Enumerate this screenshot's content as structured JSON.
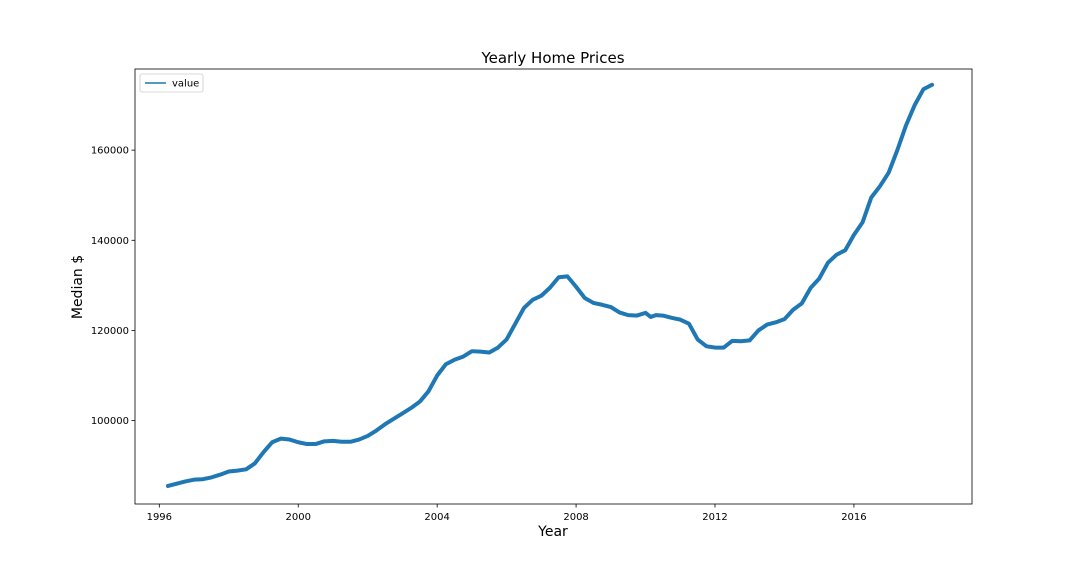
{
  "chart_data": {
    "type": "line",
    "title": "Yearly Home Prices",
    "xlabel": "Year",
    "ylabel": "Median $",
    "xlim": [
      1995.3,
      2019.4
    ],
    "ylim": [
      81500,
      178000
    ],
    "xticks": [
      1996,
      2000,
      2004,
      2008,
      2012,
      2016
    ],
    "yticks": [
      100000,
      120000,
      140000,
      160000
    ],
    "grid": false,
    "legend": {
      "position": "top-left",
      "entries": [
        "value"
      ]
    },
    "series": [
      {
        "name": "value",
        "color": "#1f77b4",
        "x": [
          1996.25,
          1996.5,
          1996.75,
          1997.0,
          1997.25,
          1997.5,
          1997.75,
          1998.0,
          1998.25,
          1998.5,
          1998.75,
          1999.0,
          1999.25,
          1999.5,
          1999.75,
          2000.0,
          2000.25,
          2000.5,
          2000.75,
          2001.0,
          2001.25,
          2001.5,
          2001.75,
          2002.0,
          2002.25,
          2002.5,
          2002.75,
          2003.0,
          2003.25,
          2003.5,
          2003.75,
          2004.0,
          2004.25,
          2004.5,
          2004.75,
          2005.0,
          2005.25,
          2005.5,
          2005.75,
          2006.0,
          2006.25,
          2006.5,
          2006.75,
          2007.0,
          2007.25,
          2007.5,
          2007.75,
          2008.0,
          2008.25,
          2008.5,
          2008.75,
          2009.0,
          2009.25,
          2009.5,
          2009.75,
          2010.0,
          2010.15,
          2010.3,
          2010.5,
          2010.75,
          2011.0,
          2011.25,
          2011.5,
          2011.75,
          2012.0,
          2012.25,
          2012.5,
          2012.75,
          2013.0,
          2013.25,
          2013.5,
          2013.75,
          2014.0,
          2014.25,
          2014.5,
          2014.75,
          2015.0,
          2015.25,
          2015.5,
          2015.75,
          2016.0,
          2016.25,
          2016.5,
          2016.75,
          2017.0,
          2017.25,
          2017.5,
          2017.75,
          2018.0,
          2018.25
        ],
        "values": [
          85500,
          86000,
          86500,
          86900,
          87000,
          87400,
          88000,
          88700,
          88900,
          89200,
          90500,
          93000,
          95200,
          96000,
          95800,
          95200,
          94800,
          94800,
          95400,
          95500,
          95300,
          95300,
          95800,
          96600,
          97800,
          99200,
          100400,
          101600,
          102800,
          104200,
          106500,
          110000,
          112500,
          113500,
          114200,
          115400,
          115300,
          115100,
          116200,
          118000,
          121500,
          125000,
          126800,
          127700,
          129500,
          131800,
          132000,
          129700,
          127200,
          126100,
          125700,
          125200,
          124000,
          123400,
          123300,
          123900,
          123000,
          123400,
          123300,
          122800,
          122400,
          121500,
          118000,
          116500,
          116200,
          116200,
          117700,
          117600,
          117800,
          120000,
          121300,
          121800,
          122500,
          124600,
          126000,
          129400,
          131500,
          135000,
          136800,
          137800,
          141200,
          144000,
          149500,
          152000,
          155000,
          160000,
          165500,
          170000,
          173500,
          174500
        ]
      }
    ]
  }
}
